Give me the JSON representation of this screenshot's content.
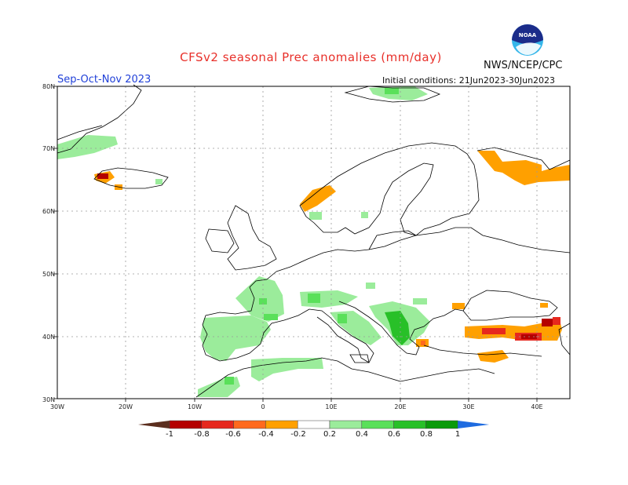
{
  "header": {
    "title": "CFSv2 seasonal Prec anomalies (mm/day)",
    "agency": "NWS/NCEP/CPC",
    "logo_text": "NOAA",
    "season": "Sep-Oct-Nov 2023",
    "initial_conditions": "Initial conditions: 21Jun2023-30Jun2023"
  },
  "map": {
    "lon_range": [
      -30,
      45
    ],
    "lat_range": [
      30,
      80
    ],
    "lat_ticks": [
      "30N",
      "40N",
      "50N",
      "60N",
      "70N",
      "80N"
    ],
    "lon_ticks": [
      "30W",
      "20W",
      "10W",
      "0",
      "10E",
      "20E",
      "30E",
      "40E"
    ],
    "grid_lons": [
      -20,
      -10,
      0,
      10,
      20,
      30,
      40
    ],
    "grid_lats": [
      40,
      50,
      60,
      70
    ]
  },
  "legend": {
    "labels": [
      "-1",
      "-0.8",
      "-0.6",
      "-0.4",
      "-0.2",
      "0.2",
      "0.4",
      "0.6",
      "0.8",
      "1"
    ],
    "colors": [
      "#5b2e1e",
      "#b40000",
      "#e6281e",
      "#ff6a1e",
      "#ffa000",
      "#ffffff",
      "#9bec9b",
      "#5ae05a",
      "#28c028",
      "#0a9a0a",
      "#1e6be0"
    ]
  },
  "anomalies": {
    "negative_regions": [
      {
        "label": "Southwest Iceland",
        "level": "-0.6 to -1",
        "color": "#b40000"
      },
      {
        "label": "Norwegian coast",
        "level": "-0.2 to -0.4",
        "color": "#ffa000"
      },
      {
        "label": "Kola Peninsula / NW Russia",
        "level": "-0.2 to -0.4",
        "color": "#ffa000"
      },
      {
        "label": "Turkey Black Sea coast",
        "level": "-0.2 to -0.8",
        "color": "#e6281e"
      },
      {
        "label": "Caucasus",
        "level": "-0.4 to -1",
        "color": "#b40000"
      },
      {
        "label": "Aegean",
        "level": "-0.2 to -0.4",
        "color": "#ffa000"
      },
      {
        "label": "Southern Turkey",
        "level": "-0.2",
        "color": "#ffa000"
      }
    ],
    "positive_regions": [
      {
        "label": "Greenland east coast",
        "level": "0.2",
        "color": "#9bec9b"
      },
      {
        "label": "Svalbard",
        "level": "0.2 to 0.4",
        "color": "#5ae05a"
      },
      {
        "label": "Iberia and France",
        "level": "0.2 to 0.4",
        "color": "#5ae05a"
      },
      {
        "label": "Italy and Adriatic",
        "level": "0.2 to 0.4",
        "color": "#5ae05a"
      },
      {
        "label": "Balkans / Greece",
        "level": "0.4 to 0.8",
        "color": "#28c028"
      },
      {
        "label": "North Africa",
        "level": "0.2 to 0.4",
        "color": "#9bec9b"
      }
    ]
  }
}
